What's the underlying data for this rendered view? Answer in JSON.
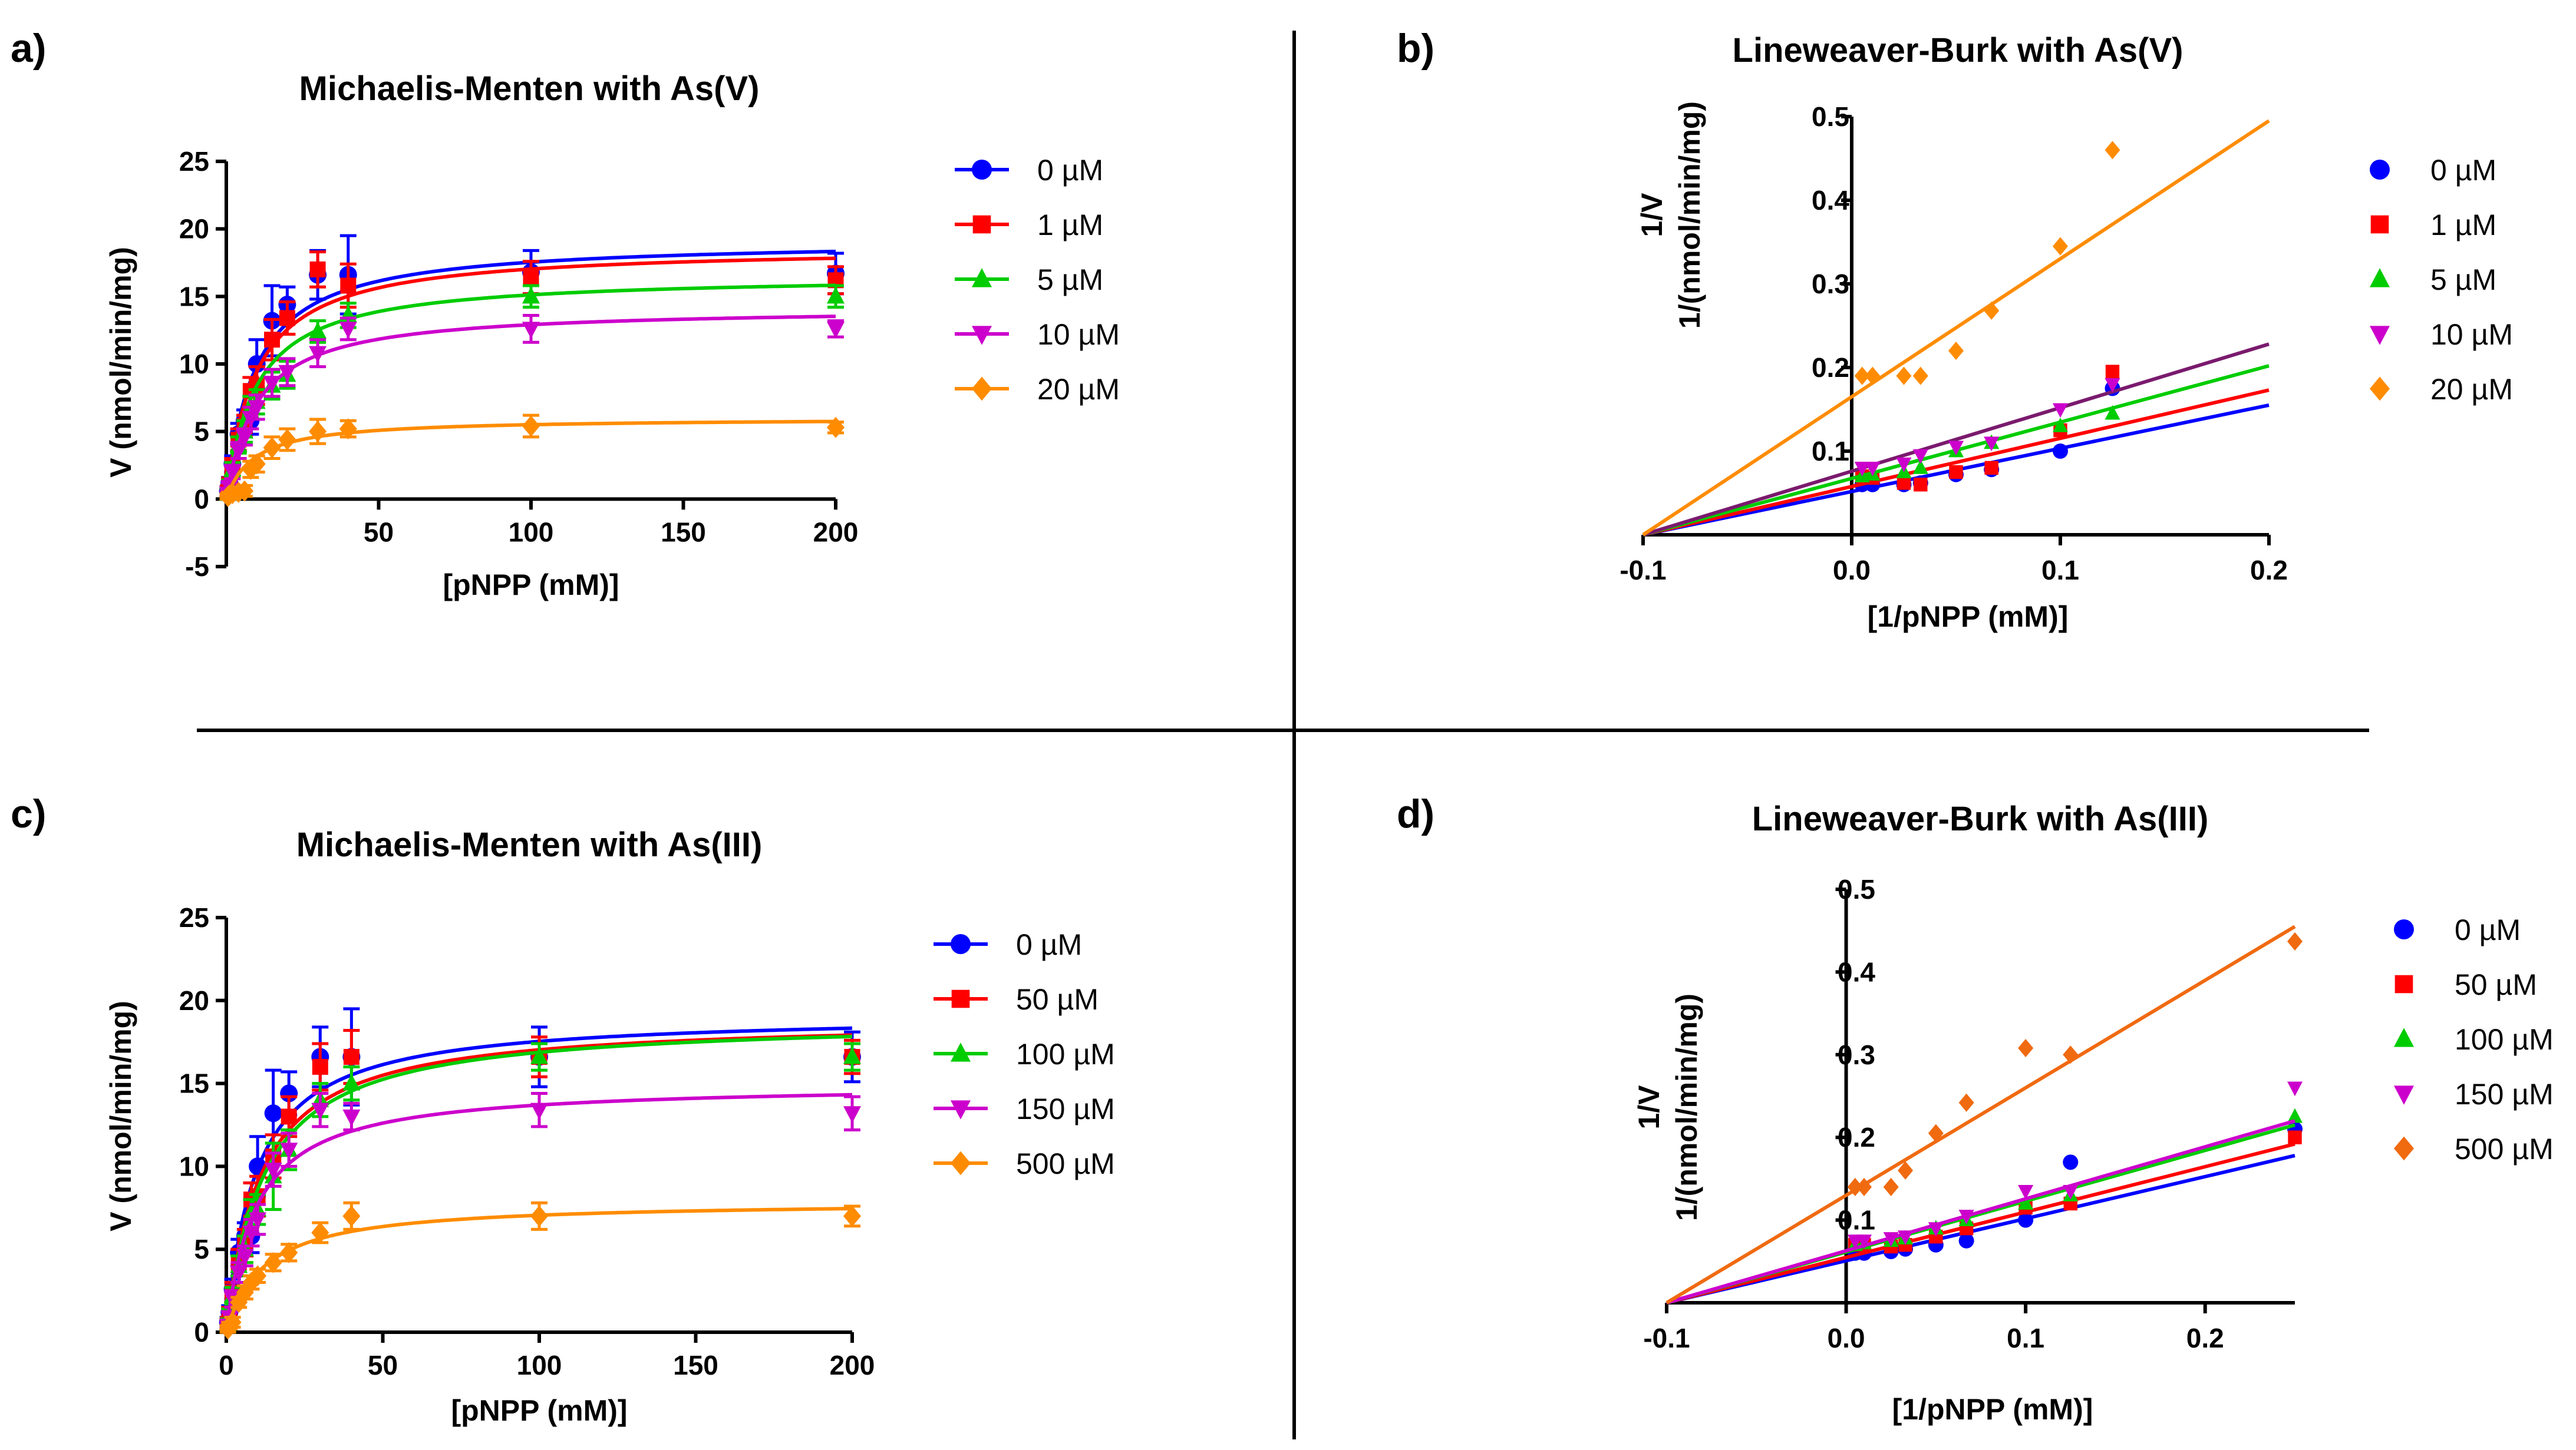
{
  "chart_data": [
    {
      "panel": "a)",
      "type": "line",
      "title": "Michaelis-Menten with As(V)",
      "xlabel": "[pNPP (mM)]",
      "ylabel": "V (nmol/min/mg)",
      "xlim": [
        0,
        200
      ],
      "ylim": [
        -5,
        25
      ],
      "xticks": [
        50,
        100,
        150,
        200
      ],
      "yticks": [
        -5,
        0,
        5,
        10,
        15,
        20,
        25
      ],
      "legend_position": "right",
      "x": [
        0.5,
        1,
        2,
        4,
        6,
        8,
        10,
        15,
        20,
        30,
        40,
        100,
        200
      ],
      "series": [
        {
          "name": "0 µM",
          "color": "#0000ff",
          "marker": "circle",
          "vmax": 19.2,
          "km": 9.5,
          "values": [
            0.6,
            1.2,
            2.6,
            4.8,
            5.8,
            5.8,
            10.0,
            13.2,
            14.4,
            16.6,
            16.6,
            16.8,
            16.7
          ],
          "errors": [
            0.3,
            0.4,
            0.6,
            0.8,
            0.8,
            1.0,
            1.8,
            2.6,
            1.3,
            1.8,
            2.9,
            1.6,
            1.5
          ]
        },
        {
          "name": "1 µM",
          "color": "#ff0000",
          "marker": "square",
          "vmax": 18.7,
          "km": 9.8,
          "values": [
            0.5,
            1.1,
            2.4,
            4.4,
            5.4,
            8.0,
            8.4,
            11.8,
            13.4,
            17.0,
            15.8,
            16.4,
            16.2
          ],
          "errors": [
            0.3,
            0.4,
            0.6,
            0.8,
            0.8,
            1.0,
            1.4,
            1.5,
            1.2,
            1.3,
            1.6,
            1.2,
            1.0
          ]
        },
        {
          "name": "5 µM",
          "color": "#00cc00",
          "marker": "triangle-up",
          "vmax": 16.6,
          "km": 9.8,
          "values": [
            0.4,
            1.0,
            2.2,
            4.0,
            5.0,
            6.8,
            7.2,
            8.4,
            9.2,
            12.4,
            13.6,
            15.0,
            15.0
          ],
          "errors": [
            0.3,
            0.4,
            0.5,
            0.6,
            0.8,
            0.8,
            0.9,
            1.0,
            1.0,
            0.8,
            0.9,
            0.8,
            0.8
          ]
        },
        {
          "name": "10 µM",
          "color": "#cc00cc",
          "marker": "triangle-down",
          "vmax": 14.2,
          "km": 10.0,
          "values": [
            0.4,
            0.9,
            2.0,
            3.6,
            4.6,
            6.0,
            6.8,
            8.6,
            9.4,
            10.8,
            12.6,
            12.6,
            12.6
          ],
          "errors": [
            0.2,
            0.3,
            0.5,
            0.6,
            0.6,
            0.8,
            0.9,
            1.0,
            1.0,
            1.0,
            0.8,
            1.0,
            0.6
          ]
        },
        {
          "name": "20 µM",
          "color": "#ff8c00",
          "marker": "diamond",
          "vmax": 6.0,
          "km": 9.0,
          "values": [
            0.2,
            0.3,
            0.4,
            0.5,
            0.6,
            2.2,
            2.6,
            3.8,
            4.4,
            5.0,
            5.2,
            5.4,
            5.3
          ],
          "errors": [
            0.2,
            0.2,
            0.2,
            0.3,
            0.4,
            0.6,
            0.6,
            0.8,
            0.8,
            0.9,
            0.6,
            0.8,
            0.4
          ]
        }
      ]
    },
    {
      "panel": "b)",
      "type": "scatter",
      "title": "Lineweaver-Burk with As(V)",
      "xlabel": "[1/pNPP (mM)]",
      "ylabel": "1/(nmol/min/mg)",
      "ylabel2": "1/V",
      "xlim": [
        -0.1,
        0.2
      ],
      "ylim": [
        0,
        0.5
      ],
      "xticks": [
        -0.1,
        0.0,
        0.1,
        0.2
      ],
      "xticklabels": [
        "-0.1",
        "0.0",
        "0.1",
        "0.2"
      ],
      "yticks": [
        0.1,
        0.2,
        0.3,
        0.4,
        0.5
      ],
      "yticklabels": [
        "0.1",
        "0.2",
        "0.3",
        "0.4",
        "0.5"
      ],
      "legend_position": "right",
      "series": [
        {
          "name": "0 µM",
          "color": "#0000ff",
          "marker": "circle",
          "line_color": "#0000ff",
          "x": [
            0.005,
            0.01,
            0.025,
            0.033,
            0.05,
            0.067,
            0.1,
            0.125
          ],
          "y": [
            0.06,
            0.06,
            0.06,
            0.062,
            0.072,
            0.078,
            0.1,
            0.175
          ],
          "fit": [
            [
              -0.1,
              0.0
            ],
            [
              0.2,
              0.155
            ]
          ]
        },
        {
          "name": "1 µM",
          "color": "#ff0000",
          "marker": "square",
          "line_color": "#ff0000",
          "x": [
            0.005,
            0.01,
            0.025,
            0.033,
            0.05,
            0.067,
            0.1,
            0.125
          ],
          "y": [
            0.07,
            0.068,
            0.062,
            0.06,
            0.075,
            0.08,
            0.125,
            0.195
          ],
          "fit": [
            [
              -0.1,
              0.0
            ],
            [
              0.2,
              0.173
            ]
          ]
        },
        {
          "name": "5 µM",
          "color": "#00cc00",
          "marker": "triangle-up",
          "line_color": "#00cc00",
          "x": [
            0.005,
            0.01,
            0.025,
            0.033,
            0.05,
            0.067,
            0.1,
            0.125
          ],
          "y": [
            0.07,
            0.072,
            0.075,
            0.08,
            0.1,
            0.11,
            0.13,
            0.145
          ],
          "fit": [
            [
              -0.1,
              0.0
            ],
            [
              0.2,
              0.202
            ]
          ]
        },
        {
          "name": "10 µM",
          "color": "#cc00cc",
          "marker": "triangle-down",
          "line_color": "#7a1a6e",
          "x": [
            0.005,
            0.01,
            0.025,
            0.033,
            0.05,
            0.067,
            0.1,
            0.125
          ],
          "y": [
            0.08,
            0.08,
            0.085,
            0.095,
            0.105,
            0.11,
            0.15,
            0.18
          ],
          "fit": [
            [
              -0.1,
              0.0
            ],
            [
              0.2,
              0.228
            ]
          ]
        },
        {
          "name": "20 µM",
          "color": "#ff8c00",
          "marker": "diamond",
          "line_color": "#ff8c00",
          "x": [
            0.005,
            0.01,
            0.025,
            0.033,
            0.05,
            0.067,
            0.1,
            0.125
          ],
          "y": [
            0.19,
            0.19,
            0.19,
            0.19,
            0.22,
            0.268,
            0.345,
            0.46
          ],
          "fit": [
            [
              -0.1,
              0.0
            ],
            [
              0.2,
              0.495
            ]
          ]
        }
      ]
    },
    {
      "panel": "c)",
      "type": "line",
      "title": "Michaelis-Menten with As(III)",
      "xlabel": "[pNPP (mM)]",
      "ylabel": "V (nmol/min/mg)",
      "xlim": [
        0,
        200
      ],
      "ylim": [
        0,
        25
      ],
      "xticks": [
        0,
        50,
        100,
        150,
        200
      ],
      "yticks": [
        0,
        5,
        10,
        15,
        20,
        25
      ],
      "legend_position": "right",
      "x": [
        0.5,
        1,
        2,
        4,
        6,
        8,
        10,
        15,
        20,
        30,
        40,
        100,
        200
      ],
      "series": [
        {
          "name": "0 µM",
          "color": "#0000ff",
          "marker": "circle",
          "vmax": 19.2,
          "km": 9.5,
          "values": [
            0.6,
            1.2,
            2.6,
            4.8,
            5.8,
            5.8,
            10.0,
            13.2,
            14.4,
            16.6,
            16.6,
            16.6,
            16.6
          ],
          "errors": [
            0.3,
            0.4,
            0.6,
            0.8,
            0.8,
            1.0,
            1.8,
            2.6,
            1.3,
            1.8,
            2.9,
            1.8,
            1.5
          ]
        },
        {
          "name": "50 µM",
          "color": "#ff0000",
          "marker": "square",
          "vmax": 18.9,
          "km": 11.0,
          "values": [
            0.5,
            1.1,
            2.4,
            4.2,
            5.4,
            8.0,
            8.2,
            10.6,
            13.0,
            16.0,
            16.6,
            16.6,
            16.6
          ],
          "errors": [
            0.3,
            0.4,
            0.6,
            0.8,
            0.8,
            1.0,
            1.2,
            1.3,
            1.2,
            1.4,
            1.6,
            1.2,
            1.0
          ]
        },
        {
          "name": "100 µM",
          "color": "#00cc00",
          "marker": "triangle-up",
          "vmax": 18.9,
          "km": 12.0,
          "values": [
            0.5,
            1.0,
            2.2,
            4.0,
            5.0,
            7.2,
            7.4,
            9.4,
            11.0,
            14.0,
            15.0,
            16.6,
            16.6
          ],
          "errors": [
            0.3,
            0.4,
            0.5,
            0.6,
            0.8,
            0.8,
            0.9,
            2.0,
            1.2,
            1.0,
            1.0,
            0.8,
            0.8
          ]
        },
        {
          "name": "150 µM",
          "color": "#cc00cc",
          "marker": "triangle-down",
          "vmax": 15.0,
          "km": 9.5,
          "values": [
            0.4,
            0.9,
            2.0,
            3.6,
            4.6,
            6.0,
            6.8,
            9.8,
            11.0,
            13.4,
            13.0,
            13.4,
            13.2
          ],
          "errors": [
            0.2,
            0.3,
            0.5,
            0.6,
            0.6,
            0.8,
            0.9,
            1.0,
            1.0,
            1.0,
            0.8,
            1.0,
            1.0
          ]
        },
        {
          "name": "500 µM",
          "color": "#ff8c00",
          "marker": "diamond",
          "vmax": 7.9,
          "km": 12.0,
          "values": [
            0.2,
            0.4,
            0.6,
            1.8,
            2.4,
            3.0,
            3.4,
            4.2,
            4.8,
            6.0,
            7.0,
            7.0,
            7.0
          ],
          "errors": [
            0.2,
            0.2,
            0.3,
            0.3,
            0.4,
            0.4,
            0.4,
            0.5,
            0.5,
            0.6,
            0.8,
            0.8,
            0.6
          ]
        }
      ]
    },
    {
      "panel": "d)",
      "type": "scatter",
      "title": "Lineweaver-Burk with As(III)",
      "xlabel": "[1/pNPP (mM)]",
      "ylabel": "1/(nmol/min/mg)",
      "ylabel2": "1/V",
      "xlim": [
        -0.1,
        0.25
      ],
      "ylim": [
        0,
        0.5
      ],
      "xticks": [
        -0.1,
        0.0,
        0.1,
        0.2
      ],
      "xticklabels": [
        "-0.1",
        "0.0",
        "0.1",
        "0.2"
      ],
      "yticks": [
        0.1,
        0.2,
        0.3,
        0.4,
        0.5
      ],
      "yticklabels": [
        "0.1",
        "0.2",
        "0.3",
        "0.4",
        "0.5"
      ],
      "legend_position": "right",
      "series": [
        {
          "name": "0 µM",
          "color": "#0000ff",
          "marker": "circle",
          "line_color": "#0000ff",
          "x": [
            0.005,
            0.01,
            0.025,
            0.033,
            0.05,
            0.067,
            0.1,
            0.125,
            0.25
          ],
          "y": [
            0.06,
            0.06,
            0.062,
            0.065,
            0.07,
            0.075,
            0.1,
            0.17,
            0.21
          ],
          "fit": [
            [
              -0.1,
              0.0
            ],
            [
              0.25,
              0.178
            ]
          ]
        },
        {
          "name": "50 µM",
          "color": "#ff0000",
          "marker": "square",
          "line_color": "#ff0000",
          "x": [
            0.005,
            0.01,
            0.025,
            0.033,
            0.05,
            0.067,
            0.1,
            0.125,
            0.25
          ],
          "y": [
            0.07,
            0.07,
            0.068,
            0.07,
            0.08,
            0.09,
            0.115,
            0.12,
            0.2
          ],
          "fit": [
            [
              -0.1,
              0.0
            ],
            [
              0.25,
              0.192
            ]
          ]
        },
        {
          "name": "100 µM",
          "color": "#00cc00",
          "marker": "triangle-up",
          "line_color": "#00cc00",
          "x": [
            0.005,
            0.01,
            0.025,
            0.033,
            0.05,
            0.067,
            0.1,
            0.125,
            0.25
          ],
          "y": [
            0.07,
            0.072,
            0.075,
            0.078,
            0.09,
            0.1,
            0.12,
            0.13,
            0.225
          ],
          "fit": [
            [
              -0.1,
              0.0
            ],
            [
              0.25,
              0.215
            ]
          ]
        },
        {
          "name": "150 µM",
          "color": "#cc00cc",
          "marker": "triangle-down",
          "line_color": "#cc00cc",
          "x": [
            0.005,
            0.01,
            0.025,
            0.033,
            0.05,
            0.067,
            0.1,
            0.125,
            0.25
          ],
          "y": [
            0.075,
            0.075,
            0.078,
            0.08,
            0.09,
            0.105,
            0.135,
            0.135,
            0.26
          ],
          "fit": [
            [
              -0.1,
              0.0
            ],
            [
              0.25,
              0.22
            ]
          ]
        },
        {
          "name": "500 µM",
          "color": "#f06a10",
          "marker": "diamond",
          "line_color": "#f06a10",
          "x": [
            0.005,
            0.01,
            0.025,
            0.033,
            0.05,
            0.067,
            0.1,
            0.125,
            0.25
          ],
          "y": [
            0.14,
            0.14,
            0.14,
            0.16,
            0.205,
            0.242,
            0.308,
            0.3,
            0.437
          ],
          "fit": [
            [
              -0.1,
              0.0
            ],
            [
              0.25,
              0.455
            ]
          ]
        }
      ]
    }
  ]
}
